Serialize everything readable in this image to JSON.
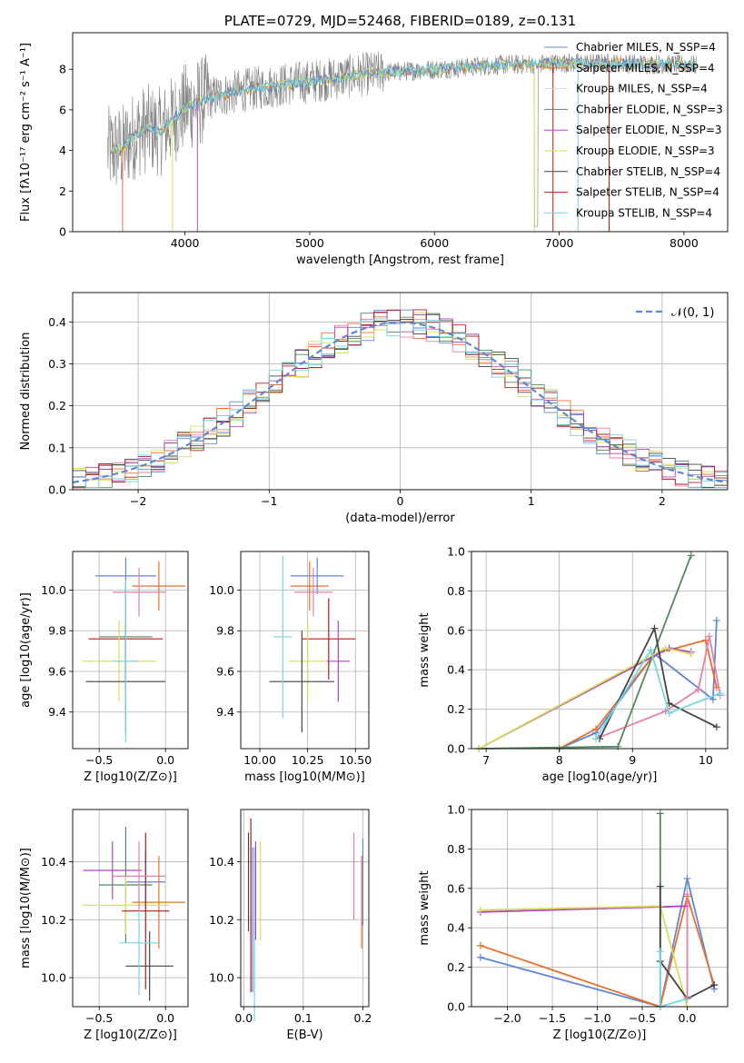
{
  "colors": {
    "chabrier_miles": "#5f87d8",
    "salpeter_miles": "#e8702a",
    "kroupa_miles": "#d7d7d7",
    "chabrier_elodie": "#4f8a5f",
    "salpeter_elodie": "#b044c4",
    "kroupa_elodie": "#d6df56",
    "chabrier_stelib": "#444444",
    "salpeter_stelib": "#b31b1b",
    "kroupa_stelib": "#74d7e0",
    "pink": "#e87fa7",
    "data": "#808080"
  },
  "chart_data": [
    {
      "id": "spectrum",
      "type": "line",
      "title": "PLATE=0729, MJD=52468, FIBERID=0189, z=0.131",
      "xlabel": "wavelength [Angstrom, rest frame]",
      "ylabel": "Flux [fλ10⁻¹⁷ erg cm⁻² s⁻¹ A⁻¹]",
      "xlim": [
        3100,
        8350
      ],
      "ylim": [
        0,
        9.8
      ],
      "xticks": [
        "4000",
        "5000",
        "6000",
        "7000",
        "8000"
      ],
      "yticks": [
        "0",
        "2",
        "4",
        "6",
        "8"
      ],
      "legend_position": "top-right",
      "legend": [
        "Chabrier MILES, N_SSP=4",
        "Salpeter MILES, N_SSP=4",
        "Kroupa MILES, N_SSP=4",
        "Chabrier ELODIE, N_SSP=3",
        "Salpeter ELODIE, N_SSP=3",
        "Kroupa ELODIE, N_SSP=3",
        "Chabrier STELIB, N_SSP=4",
        "Salpeter STELIB, N_SSP=4",
        "Kroupa STELIB, N_SSP=4"
      ],
      "continuum": [
        [
          3400,
          4.0
        ],
        [
          3500,
          4.1
        ],
        [
          3600,
          4.8
        ],
        [
          3700,
          5.1
        ],
        [
          3800,
          4.9
        ],
        [
          3900,
          5.5
        ],
        [
          4000,
          6.1
        ],
        [
          4200,
          6.6
        ],
        [
          4500,
          7.0
        ],
        [
          5000,
          7.4
        ],
        [
          5500,
          7.8
        ],
        [
          6000,
          8.0
        ],
        [
          6500,
          8.2
        ],
        [
          7000,
          8.3
        ],
        [
          7500,
          8.3
        ],
        [
          8100,
          8.2
        ]
      ],
      "grid": false
    },
    {
      "id": "residuals",
      "type": "line",
      "xlabel": "(data-model)/error",
      "ylabel": "Normed distribution",
      "xlim": [
        -2.5,
        2.5
      ],
      "ylim": [
        0,
        0.47
      ],
      "xticks": [
        "−2",
        "−1",
        "0",
        "1",
        "2"
      ],
      "yticks": [
        "0.0",
        "0.1",
        "0.2",
        "0.3",
        "0.4"
      ],
      "legend": [
        "𝒩(0, 1)"
      ],
      "legend_position": "top-right",
      "grid": true
    },
    {
      "id": "age_vs_Z",
      "type": "scatter",
      "xlabel": "Z [log10(Z/Z⊙)]",
      "ylabel": "age  [log10(age/yr)]",
      "xlim": [
        -0.7,
        0.17
      ],
      "ylim": [
        9.22,
        10.19
      ],
      "xticks": [
        "−0.5",
        "0.0"
      ],
      "yticks": [
        "9.4",
        "9.6",
        "9.8",
        "10.0"
      ],
      "grid": true,
      "points": [
        {
          "x": -0.3,
          "y": 10.07,
          "xerr": 0.23,
          "yerr": 0.09,
          "color": "chabrier_miles"
        },
        {
          "x": -0.05,
          "y": 10.02,
          "xerr": 0.2,
          "yerr": 0.12,
          "color": "salpeter_miles"
        },
        {
          "x": -0.2,
          "y": 9.99,
          "xerr": 0.2,
          "yerr": 0.12,
          "color": "pink"
        },
        {
          "x": -0.3,
          "y": 9.77,
          "xerr": 0.2,
          "yerr": 0.2,
          "color": "chabrier_elodie"
        },
        {
          "x": -0.3,
          "y": 9.76,
          "xerr": 0.28,
          "yerr": 0.25,
          "color": "salpeter_stelib"
        },
        {
          "x": -0.35,
          "y": 9.65,
          "xerr": 0.28,
          "yerr": 0.2,
          "color": "kroupa_elodie"
        },
        {
          "x": -0.3,
          "y": 9.55,
          "xerr": 0.3,
          "yerr": 0.25,
          "color": "chabrier_stelib"
        },
        {
          "x": -0.3,
          "y": 9.65,
          "xerr": 0.1,
          "yerr": 0.4,
          "color": "kroupa_stelib"
        }
      ]
    },
    {
      "id": "age_vs_mass",
      "type": "scatter",
      "xlabel": "mass [log10(M/M⊙)]",
      "ylabel": "",
      "xlim": [
        9.9,
        10.57
      ],
      "ylim": [
        9.22,
        10.19
      ],
      "xticks": [
        "10.00",
        "10.25",
        "10.50"
      ],
      "yticks": [
        "9.4",
        "9.6",
        "9.8",
        "10.0"
      ],
      "grid": true,
      "points": [
        {
          "x": 10.3,
          "y": 10.07,
          "xerr": 0.14,
          "yerr": 0.09,
          "color": "chabrier_miles"
        },
        {
          "x": 10.26,
          "y": 10.02,
          "xerr": 0.1,
          "yerr": 0.12,
          "color": "salpeter_miles"
        },
        {
          "x": 10.28,
          "y": 9.99,
          "xerr": 0.1,
          "yerr": 0.12,
          "color": "pink"
        },
        {
          "x": 10.36,
          "y": 9.76,
          "xerr": 0.14,
          "yerr": 0.2,
          "color": "salpeter_stelib"
        },
        {
          "x": 10.25,
          "y": 9.65,
          "xerr": 0.1,
          "yerr": 0.2,
          "color": "kroupa_elodie"
        },
        {
          "x": 10.22,
          "y": 9.55,
          "xerr": 0.17,
          "yerr": 0.25,
          "color": "chabrier_stelib"
        },
        {
          "x": 10.12,
          "y": 9.77,
          "xerr": 0.05,
          "yerr": 0.4,
          "color": "kroupa_stelib"
        },
        {
          "x": 10.41,
          "y": 9.65,
          "xerr": 0.06,
          "yerr": 0.2,
          "color": "salpeter_elodie"
        }
      ]
    },
    {
      "id": "weight_vs_age",
      "type": "line",
      "xlabel": "age  [log10(age/yr)]",
      "ylabel": "mass weight",
      "xlim": [
        6.8,
        10.3
      ],
      "ylim": [
        0,
        1.0
      ],
      "xticks": [
        "7",
        "8",
        "9",
        "10"
      ],
      "yticks": [
        "0.0",
        "0.2",
        "0.4",
        "0.6",
        "0.8",
        "1.0"
      ],
      "grid": true,
      "series": [
        {
          "color": "chabrier_miles",
          "x": [
            8.0,
            8.5,
            9.3,
            10.1,
            10.15
          ],
          "y": [
            0.0,
            0.08,
            0.48,
            0.25,
            0.65
          ]
        },
        {
          "color": "salpeter_miles",
          "x": [
            8.0,
            8.5,
            9.3,
            10.0,
            10.15
          ],
          "y": [
            0.0,
            0.1,
            0.48,
            0.55,
            0.31
          ]
        },
        {
          "color": "pink",
          "x": [
            8.5,
            9.45,
            9.9,
            10.05,
            10.2
          ],
          "y": [
            0.05,
            0.19,
            0.3,
            0.57,
            0.27
          ]
        },
        {
          "color": "chabrier_elodie",
          "x": [
            6.9,
            8.8,
            9.8
          ],
          "y": [
            0.0,
            0.01,
            0.98
          ]
        },
        {
          "color": "salpeter_elodie",
          "x": [
            6.9,
            9.5,
            9.8
          ],
          "y": [
            0.0,
            0.51,
            0.49
          ]
        },
        {
          "color": "kroupa_elodie",
          "x": [
            6.9,
            9.45,
            9.8
          ],
          "y": [
            0.0,
            0.51,
            0.48
          ]
        },
        {
          "color": "chabrier_stelib",
          "x": [
            8.55,
            9.3,
            9.5,
            10.15
          ],
          "y": [
            0.05,
            0.61,
            0.23,
            0.11
          ]
        },
        {
          "color": "kroupa_stelib",
          "x": [
            8.5,
            9.25,
            9.5,
            10.2
          ],
          "y": [
            0.05,
            0.5,
            0.18,
            0.28
          ]
        }
      ]
    },
    {
      "id": "mass_vs_Z",
      "type": "scatter",
      "xlabel": "Z [log10(Z/Z⊙)]",
      "ylabel": "mass [log10(M/M⊙)]",
      "xlim": [
        -0.7,
        0.17
      ],
      "ylim": [
        9.9,
        10.58
      ],
      "xticks": [
        "−0.5",
        "0.0"
      ],
      "yticks": [
        "10.0",
        "10.2",
        "10.4"
      ],
      "grid": true,
      "points": [
        {
          "x": -0.15,
          "y": 10.33,
          "xerr": 0.15,
          "yerr": 0.1,
          "color": "chabrier_miles"
        },
        {
          "x": -0.05,
          "y": 10.26,
          "xerr": 0.2,
          "yerr": 0.16,
          "color": "salpeter_miles"
        },
        {
          "x": -0.4,
          "y": 10.37,
          "xerr": 0.22,
          "yerr": 0.1,
          "color": "salpeter_elodie"
        },
        {
          "x": -0.3,
          "y": 10.32,
          "xerr": 0.2,
          "yerr": 0.2,
          "color": "chabrier_elodie"
        },
        {
          "x": -0.3,
          "y": 10.25,
          "xerr": 0.33,
          "yerr": 0.1,
          "color": "kroupa_elodie"
        },
        {
          "x": -0.15,
          "y": 10.23,
          "xerr": 0.18,
          "yerr": 0.27,
          "color": "salpeter_stelib"
        },
        {
          "x": -0.12,
          "y": 10.04,
          "xerr": 0.18,
          "yerr": 0.12,
          "color": "chabrier_stelib"
        },
        {
          "x": -0.2,
          "y": 10.12,
          "xerr": 0.15,
          "yerr": 0.18,
          "color": "kroupa_stelib"
        },
        {
          "x": -0.2,
          "y": 10.35,
          "xerr": 0.2,
          "yerr": 0.12,
          "color": "pink"
        }
      ]
    },
    {
      "id": "mass_vs_ebv",
      "type": "scatter",
      "xlabel": "E(B-V)",
      "ylabel": "",
      "xlim": [
        -0.005,
        0.21
      ],
      "ylim": [
        9.9,
        10.58
      ],
      "xticks": [
        "0.0",
        "0.1",
        "0.2"
      ],
      "yticks": [
        "10.0",
        "10.2",
        "10.4"
      ],
      "grid": true,
      "points": [
        {
          "x": 0.008,
          "y": 10.33,
          "xerr": 0,
          "yerr": 0.17,
          "color": "chabrier_stelib"
        },
        {
          "x": 0.012,
          "y": 10.25,
          "xerr": 0,
          "yerr": 0.3,
          "color": "salpeter_stelib"
        },
        {
          "x": 0.015,
          "y": 10.2,
          "xerr": 0,
          "yerr": 0.25,
          "color": "chabrier_miles"
        },
        {
          "x": 0.018,
          "y": 10.15,
          "xerr": 0,
          "yerr": 0.3,
          "color": "kroupa_stelib"
        },
        {
          "x": 0.02,
          "y": 10.3,
          "xerr": 0,
          "yerr": 0.17,
          "color": "salpeter_elodie"
        },
        {
          "x": 0.028,
          "y": 10.3,
          "xerr": 0,
          "yerr": 0.17,
          "color": "kroupa_elodie"
        },
        {
          "x": 0.185,
          "y": 10.35,
          "xerr": 0,
          "yerr": 0.15,
          "color": "pink"
        },
        {
          "x": 0.198,
          "y": 10.26,
          "xerr": 0,
          "yerr": 0.16,
          "color": "salpeter_miles"
        },
        {
          "x": 0.2,
          "y": 10.33,
          "xerr": 0,
          "yerr": 0.15,
          "color": "chabrier_miles"
        }
      ]
    },
    {
      "id": "weight_vs_Z",
      "type": "line",
      "xlabel": "Z [log10(Z/Z⊙)]",
      "ylabel": "mass weight",
      "xlim": [
        -2.4,
        0.45
      ],
      "ylim": [
        0,
        1.0
      ],
      "xticks": [
        "−2.0",
        "−1.5",
        "−1.0",
        "−0.5",
        "0.0"
      ],
      "yticks": [
        "0.0",
        "0.2",
        "0.4",
        "0.6",
        "0.8",
        "1.0"
      ],
      "grid": true,
      "series": [
        {
          "color": "chabrier_miles",
          "x": [
            -2.3,
            -0.3,
            0.0,
            0.3
          ],
          "y": [
            0.25,
            0.0,
            0.65,
            0.09
          ]
        },
        {
          "color": "salpeter_miles",
          "x": [
            -2.3,
            -0.3,
            0.0,
            0.3
          ],
          "y": [
            0.31,
            0.0,
            0.56,
            0.11
          ]
        },
        {
          "color": "salpeter_elodie",
          "x": [
            -2.3,
            0.0
          ],
          "y": [
            0.48,
            0.51
          ]
        },
        {
          "color": "kroupa_elodie",
          "x": [
            -2.3,
            -0.3,
            0.0
          ],
          "y": [
            0.49,
            0.51,
            0.0
          ]
        },
        {
          "color": "chabrier_elodie",
          "x": [
            -0.3,
            -0.3
          ],
          "y": [
            0.0,
            0.98
          ]
        },
        {
          "color": "chabrier_stelib",
          "x": [
            -0.3,
            -0.3,
            0.0,
            0.3
          ],
          "y": [
            0.61,
            0.23,
            0.04,
            0.11
          ]
        },
        {
          "color": "kroupa_stelib",
          "x": [
            -0.3,
            -0.3,
            0.0
          ],
          "y": [
            0.28,
            0.0,
            0.04
          ]
        },
        {
          "color": "pink",
          "x": [
            0.0,
            0.0
          ],
          "y": [
            0.05,
            0.57
          ]
        }
      ]
    }
  ]
}
